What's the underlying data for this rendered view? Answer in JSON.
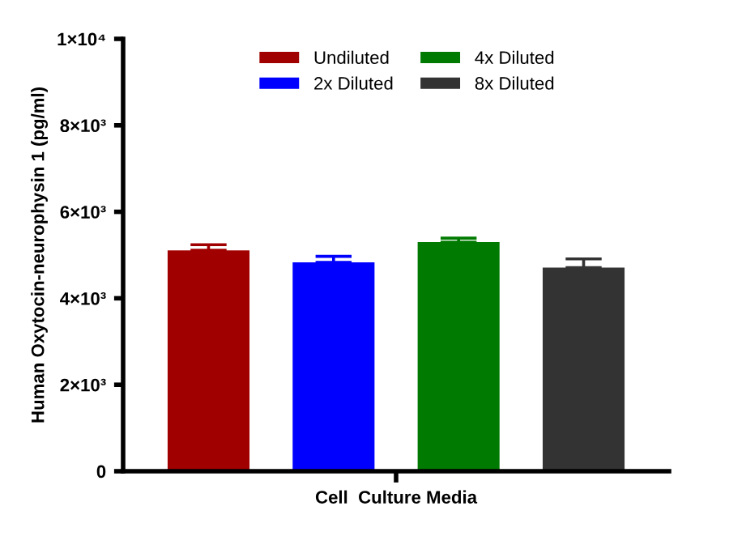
{
  "chart_data": {
    "type": "bar",
    "ylabel": "Human Oxytocin-neurophysin 1 (pg/ml)",
    "categories": [
      "Cell  Culture Media"
    ],
    "series": [
      {
        "name": "Undiluted",
        "color": "#a00000",
        "values": [
          5110
        ],
        "errors": [
          130
        ]
      },
      {
        "name": "2x Diluted",
        "color": "#0000ff",
        "values": [
          4830
        ],
        "errors": [
          140
        ]
      },
      {
        "name": "4x Diluted",
        "color": "#007a00",
        "values": [
          5300
        ],
        "errors": [
          90
        ]
      },
      {
        "name": "8x Diluted",
        "color": "#333333",
        "values": [
          4710
        ],
        "errors": [
          200
        ]
      }
    ],
    "ylim": [
      0,
      10000
    ],
    "yticks": [
      0,
      {
        "value": 2000,
        "label": "2×10³"
      },
      {
        "value": 4000,
        "label": "4×10³"
      },
      {
        "value": 6000,
        "label": "6×10³"
      },
      {
        "value": 8000,
        "label": "8×10³"
      },
      {
        "value": 10000,
        "label": "1×10⁴"
      }
    ],
    "grid": false,
    "legend": "top"
  }
}
